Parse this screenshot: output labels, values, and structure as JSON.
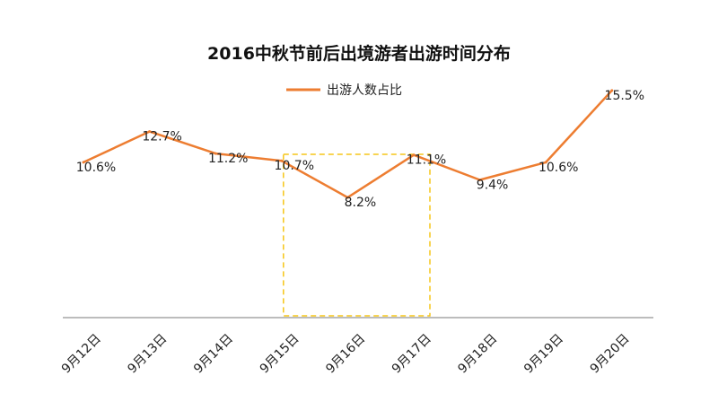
{
  "chart_data": {
    "type": "line",
    "title": "2016中秋节前后出境游者出游时间分布",
    "legend": {
      "position": "top-center"
    },
    "categories": [
      "9月12日",
      "9月13日",
      "9月14日",
      "9月15日",
      "9月16日",
      "9月17日",
      "9月18日",
      "9月19日",
      "9月20日"
    ],
    "series": [
      {
        "name": "出游人数占比",
        "values": [
          10.6,
          12.7,
          11.2,
          10.7,
          8.2,
          11.1,
          9.4,
          10.6,
          15.5
        ],
        "labels": [
          "10.6%",
          "12.7%",
          "11.2%",
          "10.7%",
          "8.2%",
          "11.1%",
          "9.4%",
          "10.6%",
          "15.5%"
        ],
        "color": "#ED7D31"
      }
    ],
    "ylim": [
      0,
      18
    ],
    "grid": false,
    "highlight": {
      "from": "9月15日",
      "to": "9月17日",
      "color": "#F5C518",
      "style": "dashed"
    },
    "axis_color": "#A6A6A6"
  }
}
